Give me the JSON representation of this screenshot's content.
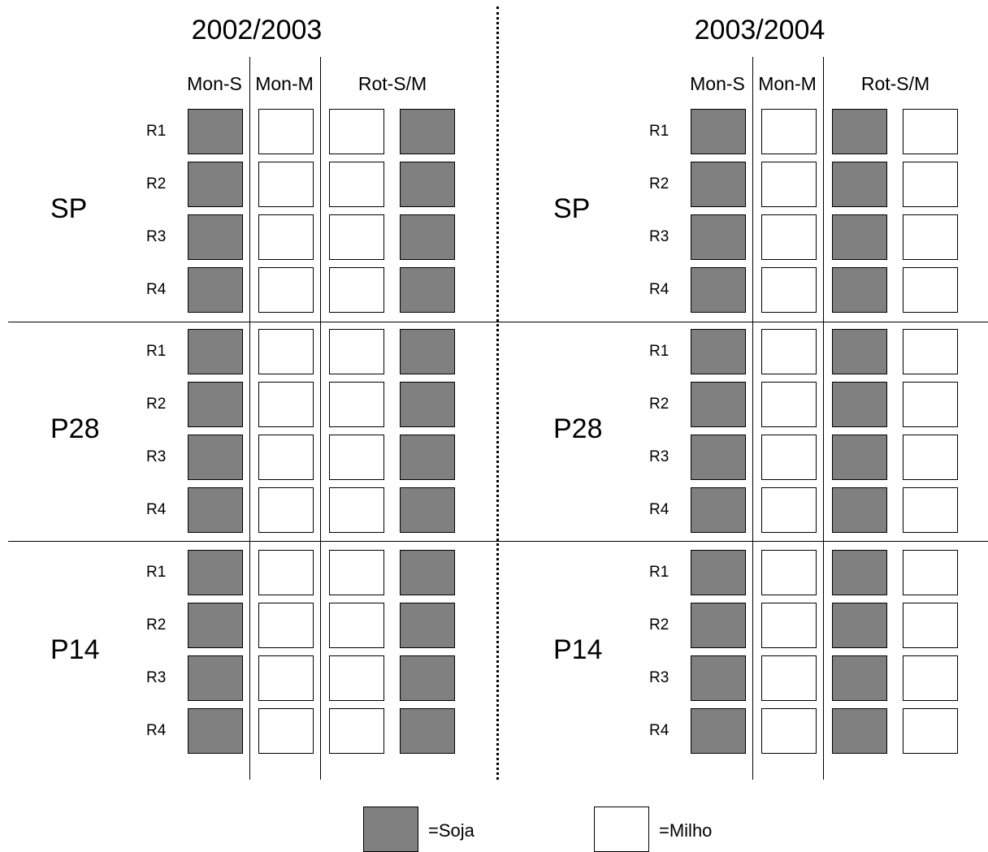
{
  "colors": {
    "soja": "#808080",
    "milho": "#ffffff",
    "line": "#000000"
  },
  "panels": [
    {
      "year": "2002/2003",
      "col_headers": [
        "Mon-S",
        "Mon-M",
        "Rot-S/M"
      ],
      "systems": [
        {
          "name": "SP",
          "reps": [
            "R1",
            "R2",
            "R3",
            "R4"
          ]
        },
        {
          "name": "P28",
          "reps": [
            "R1",
            "R2",
            "R3",
            "R4"
          ]
        },
        {
          "name": "P14",
          "reps": [
            "R1",
            "R2",
            "R3",
            "R4"
          ]
        }
      ],
      "crops": [
        "soja",
        "milho",
        "milho",
        "soja"
      ]
    },
    {
      "year": "2003/2004",
      "col_headers": [
        "Mon-S",
        "Mon-M",
        "Rot-S/M"
      ],
      "systems": [
        {
          "name": "SP",
          "reps": [
            "R1",
            "R2",
            "R3",
            "R4"
          ]
        },
        {
          "name": "P28",
          "reps": [
            "R1",
            "R2",
            "R3",
            "R4"
          ]
        },
        {
          "name": "P14",
          "reps": [
            "R1",
            "R2",
            "R3",
            "R4"
          ]
        }
      ],
      "crops": [
        "soja",
        "milho",
        "soja",
        "milho"
      ]
    }
  ],
  "legend": [
    {
      "crop": "soja",
      "label": "=Soja"
    },
    {
      "crop": "milho",
      "label": "=Milho"
    }
  ]
}
